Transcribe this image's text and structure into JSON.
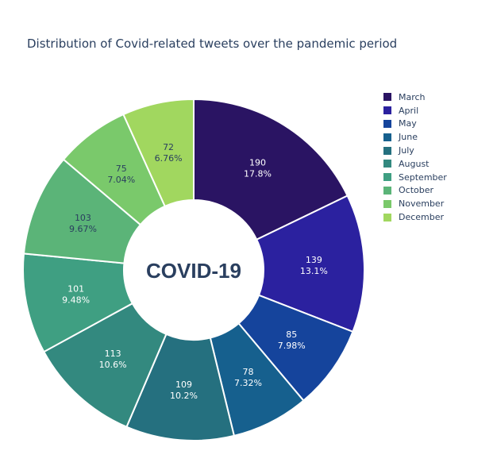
{
  "chart_data": {
    "type": "pie",
    "hole": true,
    "title": "Distribution of Covid-related tweets over the pandemic period",
    "center_text": "COVID-19",
    "categories": [
      "March",
      "April",
      "May",
      "June",
      "July",
      "August",
      "September",
      "October",
      "November",
      "December"
    ],
    "values": [
      190,
      139,
      85,
      78,
      109,
      113,
      101,
      103,
      75,
      72
    ],
    "percent_labels": [
      "17.8%",
      "13.1%",
      "7.98%",
      "7.32%",
      "10.2%",
      "10.6%",
      "9.48%",
      "9.67%",
      "7.04%",
      "6.76%"
    ],
    "colors": [
      "#2a1463",
      "#2b219f",
      "#15449c",
      "#16608e",
      "#25707f",
      "#33897f",
      "#3f9f82",
      "#5bb478",
      "#7ac96b",
      "#a1d75f"
    ],
    "label_colors": [
      "#ffffff",
      "#ffffff",
      "#ffffff",
      "#ffffff",
      "#ffffff",
      "#ffffff",
      "#ffffff",
      "#2a3f5f",
      "#2a3f5f",
      "#2a3f5f"
    ],
    "legend_position": "right",
    "sort": "none",
    "direction": "clockwise"
  }
}
